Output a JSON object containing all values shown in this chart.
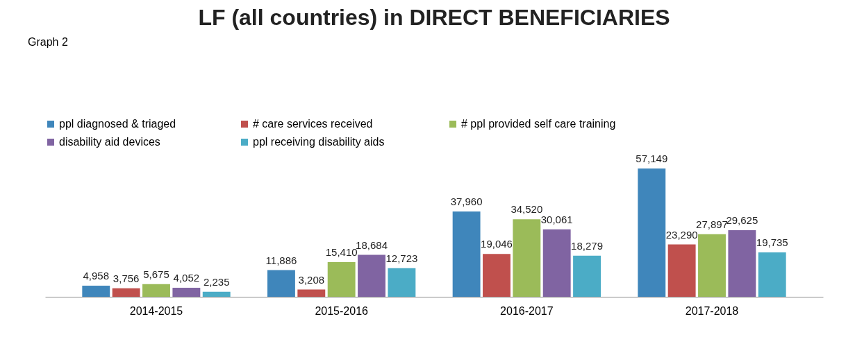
{
  "chart_data": {
    "type": "bar",
    "title": "LF (all countries) in DIRECT BENEFICIARIES",
    "annotations": [
      "Graph 2"
    ],
    "categories": [
      "2014-2015",
      "2015-2016",
      "2016-2017",
      "2017-2018"
    ],
    "series": [
      {
        "name": "ppl diagnosed & triaged",
        "color": "#3f86bb",
        "values": [
          4958,
          11886,
          37960,
          57149
        ],
        "value_labels": [
          "4,958",
          "11,886",
          "37,960",
          "57,149"
        ]
      },
      {
        "name": "# care services received",
        "color": "#c0504d",
        "values": [
          3756,
          3208,
          19046,
          23290
        ],
        "value_labels": [
          "3,756",
          "3,208",
          "19,046",
          "23,290"
        ]
      },
      {
        "name": "# ppl provided self care training",
        "color": "#9bbb59",
        "values": [
          5675,
          15410,
          34520,
          27897
        ],
        "value_labels": [
          "5,675",
          "15,410",
          "34,520",
          "27,897"
        ]
      },
      {
        "name": "disability aid devices",
        "color": "#8064a2",
        "values": [
          4052,
          18684,
          30061,
          29625
        ],
        "value_labels": [
          "4,052",
          "18,684",
          "30,061",
          "29,625"
        ]
      },
      {
        "name": "ppl receiving disability aids",
        "color": "#4bacc6",
        "values": [
          2235,
          12723,
          18279,
          19735
        ],
        "value_labels": [
          "2,235",
          "12,723",
          "18,279",
          "19,735"
        ]
      }
    ],
    "legend": "top",
    "grid": false,
    "tick_labels": "x"
  }
}
